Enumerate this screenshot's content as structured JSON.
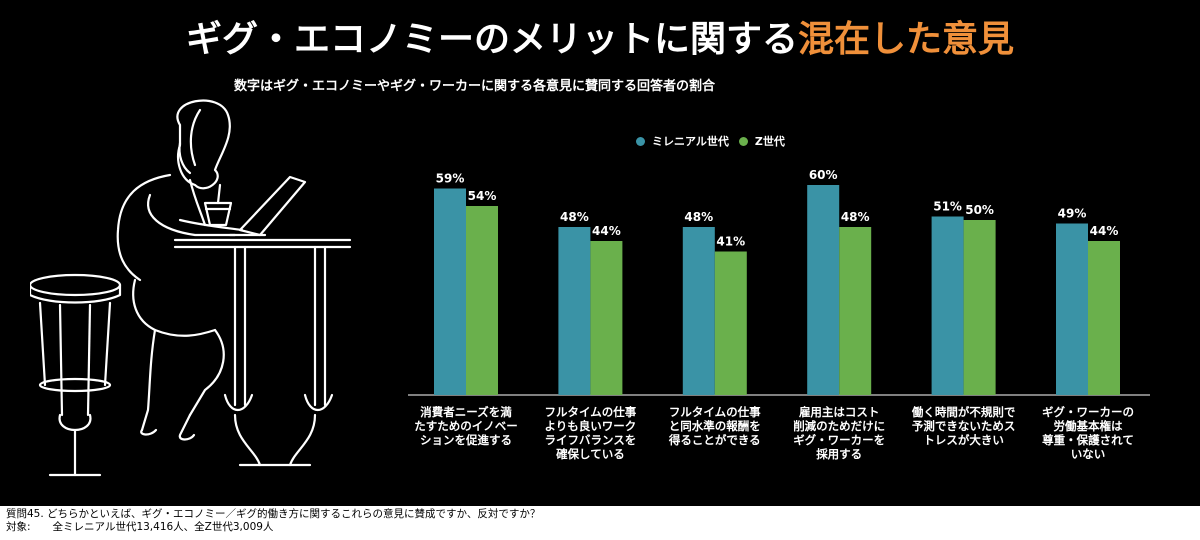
{
  "title": {
    "main": "ギグ・エコノミーのメリットに関する",
    "accent": "混在した意見"
  },
  "subtitle": "数字はギグ・エコノミーやギグ・ワーカーに関する各意見に賛同する回答者の割合",
  "colors": {
    "background": "#000000",
    "millennial": "#3a93a6",
    "genz": "#6ab04c",
    "accent": "#f0903a",
    "text": "#ffffff"
  },
  "footer": {
    "question": "質問45. どちらかといえば、ギグ・エコノミー／ギグ的働き方に関するこれらの意見に賛成ですか、反対ですか？",
    "target_label": "対象:",
    "target_value": "全ミレニアル世代13,416人、全Z世代3,009人"
  },
  "chart_data": {
    "type": "bar",
    "categories": [
      "消費者ニーズを満たすためのイノベーションを促進する",
      "フルタイムの仕事よりも良いワークライフバランスを確保している",
      "フルタイムの仕事と同水準の報酬を得ることができる",
      "雇用主はコスト削減のためだけにギグ・ワーカーを採用する",
      "働く時間が不規則で予測できないためストレスが大きい",
      "ギグ・ワーカーの労働基本権は尊重・保護されていない"
    ],
    "category_lines": [
      [
        "消費者ニーズを満",
        "たすためのイノベー",
        "ションを促進する"
      ],
      [
        "フルタイムの仕事",
        "よりも良いワーク",
        "ライフバランスを",
        "確保している"
      ],
      [
        "フルタイムの仕事",
        "と同水準の報酬を",
        "得ることができる"
      ],
      [
        "雇用主はコスト",
        "削減のためだけに",
        "ギグ・ワーカーを",
        "採用する"
      ],
      [
        "働く時間が不規則で",
        "予測できないためス",
        "トレスが大きい"
      ],
      [
        "ギグ・ワーカーの",
        "労働基本権は",
        "尊重・保護されて",
        "いない"
      ]
    ],
    "series": [
      {
        "name": "ミレニアル世代",
        "values": [
          59,
          48,
          48,
          60,
          51,
          49
        ],
        "color": "#3a93a6"
      },
      {
        "name": "Z世代",
        "values": [
          54,
          44,
          41,
          48,
          50,
          44
        ],
        "color": "#6ab04c"
      }
    ],
    "value_suffix": "%",
    "ylim": [
      0,
      60
    ],
    "legend_position": "top"
  }
}
